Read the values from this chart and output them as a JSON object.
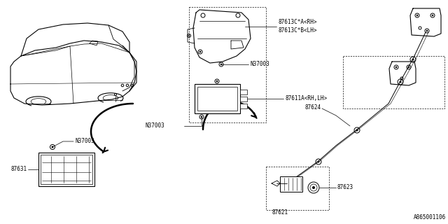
{
  "background_color": "#ffffff",
  "fig_width": 6.4,
  "fig_height": 3.2,
  "dpi": 100,
  "labels": {
    "part1a": "87613C*A<RH>",
    "part1b": "87613C*B<LH>",
    "n37003_1": "N37003",
    "n37003_2": "N37003",
    "n37003_3": "N37003",
    "part2": "87611A<RH,LH>",
    "part3": "87624",
    "part4": "87631",
    "part5": "87621",
    "part6": "87623",
    "ref": "A865001106"
  },
  "line_color": "#000000",
  "line_width": 0.7
}
